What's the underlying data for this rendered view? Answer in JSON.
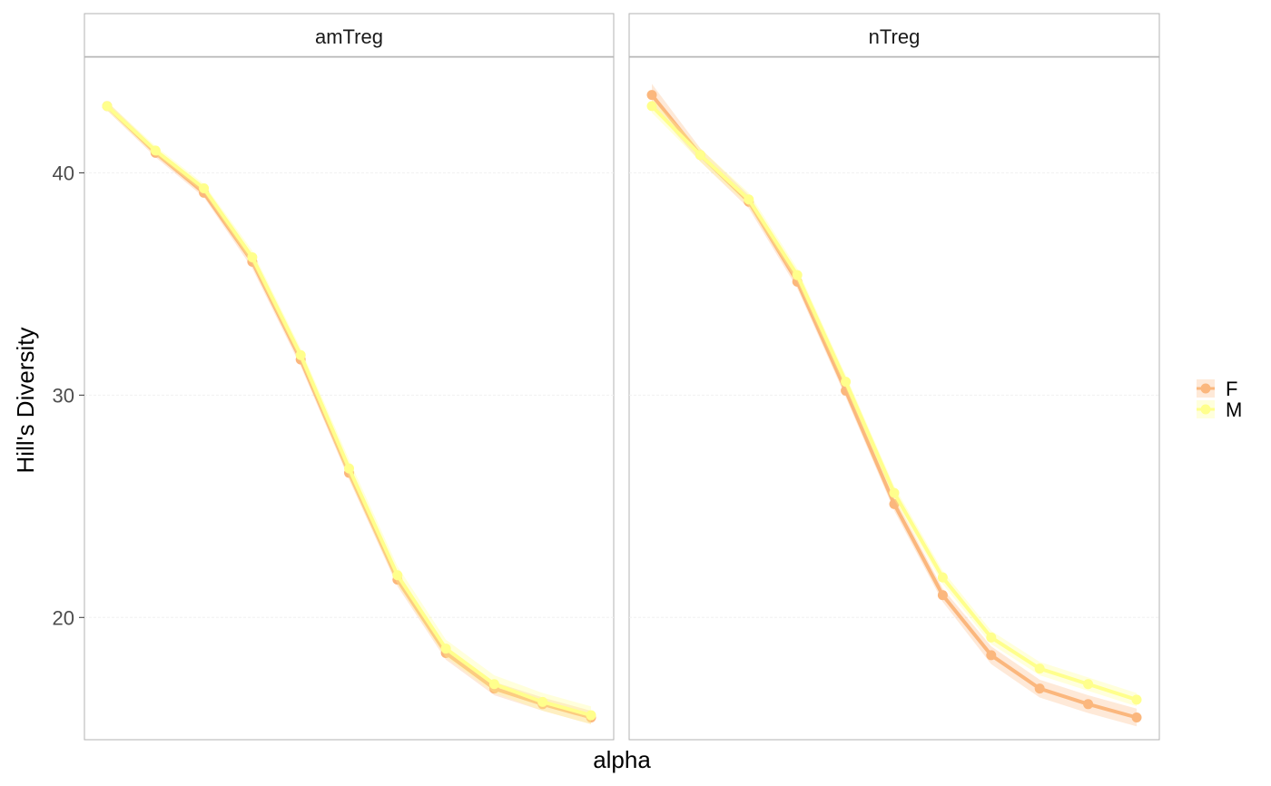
{
  "chart_data": {
    "type": "line",
    "facets": [
      "amTreg",
      "nTreg"
    ],
    "xlabel": "alpha",
    "ylabel": "Hill's Diversity",
    "ylim": [
      14.5,
      45.2
    ],
    "yticks": [
      20,
      30,
      40
    ],
    "xticks_shown": false,
    "grid": true,
    "legend_position": "right",
    "n_points": 11,
    "series": [
      {
        "name": "F",
        "color": "#fbb77d",
        "panels": {
          "amTreg": [
            43.0,
            40.9,
            39.1,
            36.0,
            31.6,
            26.5,
            21.7,
            18.4,
            16.8,
            16.1,
            15.5
          ],
          "nTreg": [
            43.5,
            40.8,
            38.7,
            35.1,
            30.2,
            25.1,
            21.0,
            18.3,
            16.8,
            16.1,
            15.5
          ]
        },
        "band": {
          "amTreg": [
            0.2,
            0.2,
            0.2,
            0.3,
            0.3,
            0.3,
            0.3,
            0.3,
            0.3,
            0.3,
            0.3
          ],
          "nTreg": [
            0.5,
            0.3,
            0.3,
            0.3,
            0.3,
            0.3,
            0.3,
            0.4,
            0.4,
            0.4,
            0.4
          ]
        }
      },
      {
        "name": "M",
        "color": "#ffff8c",
        "panels": {
          "amTreg": [
            43.0,
            41.0,
            39.3,
            36.2,
            31.8,
            26.7,
            21.9,
            18.6,
            17.0,
            16.2,
            15.6
          ],
          "nTreg": [
            43.0,
            40.8,
            38.8,
            35.4,
            30.6,
            25.6,
            21.8,
            19.1,
            17.7,
            17.0,
            16.3
          ]
        },
        "band": {
          "amTreg": [
            0.2,
            0.2,
            0.2,
            0.3,
            0.3,
            0.4,
            0.4,
            0.4,
            0.4,
            0.4,
            0.4
          ],
          "nTreg": [
            0.3,
            0.3,
            0.3,
            0.3,
            0.3,
            0.3,
            0.3,
            0.3,
            0.3,
            0.3,
            0.3
          ]
        }
      }
    ]
  }
}
